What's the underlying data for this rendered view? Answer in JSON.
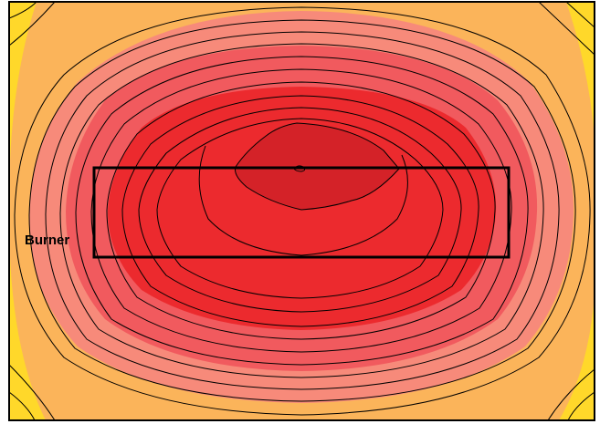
{
  "figure": {
    "burner_label": "Burner",
    "colors": {
      "background": "#ffffff",
      "frame": "#000000",
      "contour_line": "#000000",
      "band_outer": "#ffd82a",
      "band_mid_outer": "#fbb45a",
      "band_mid": "#f78a7a",
      "band_mid_inner": "#f15a5e",
      "band_inner": "#ec2a2e",
      "band_core": "#d42228"
    }
  }
}
